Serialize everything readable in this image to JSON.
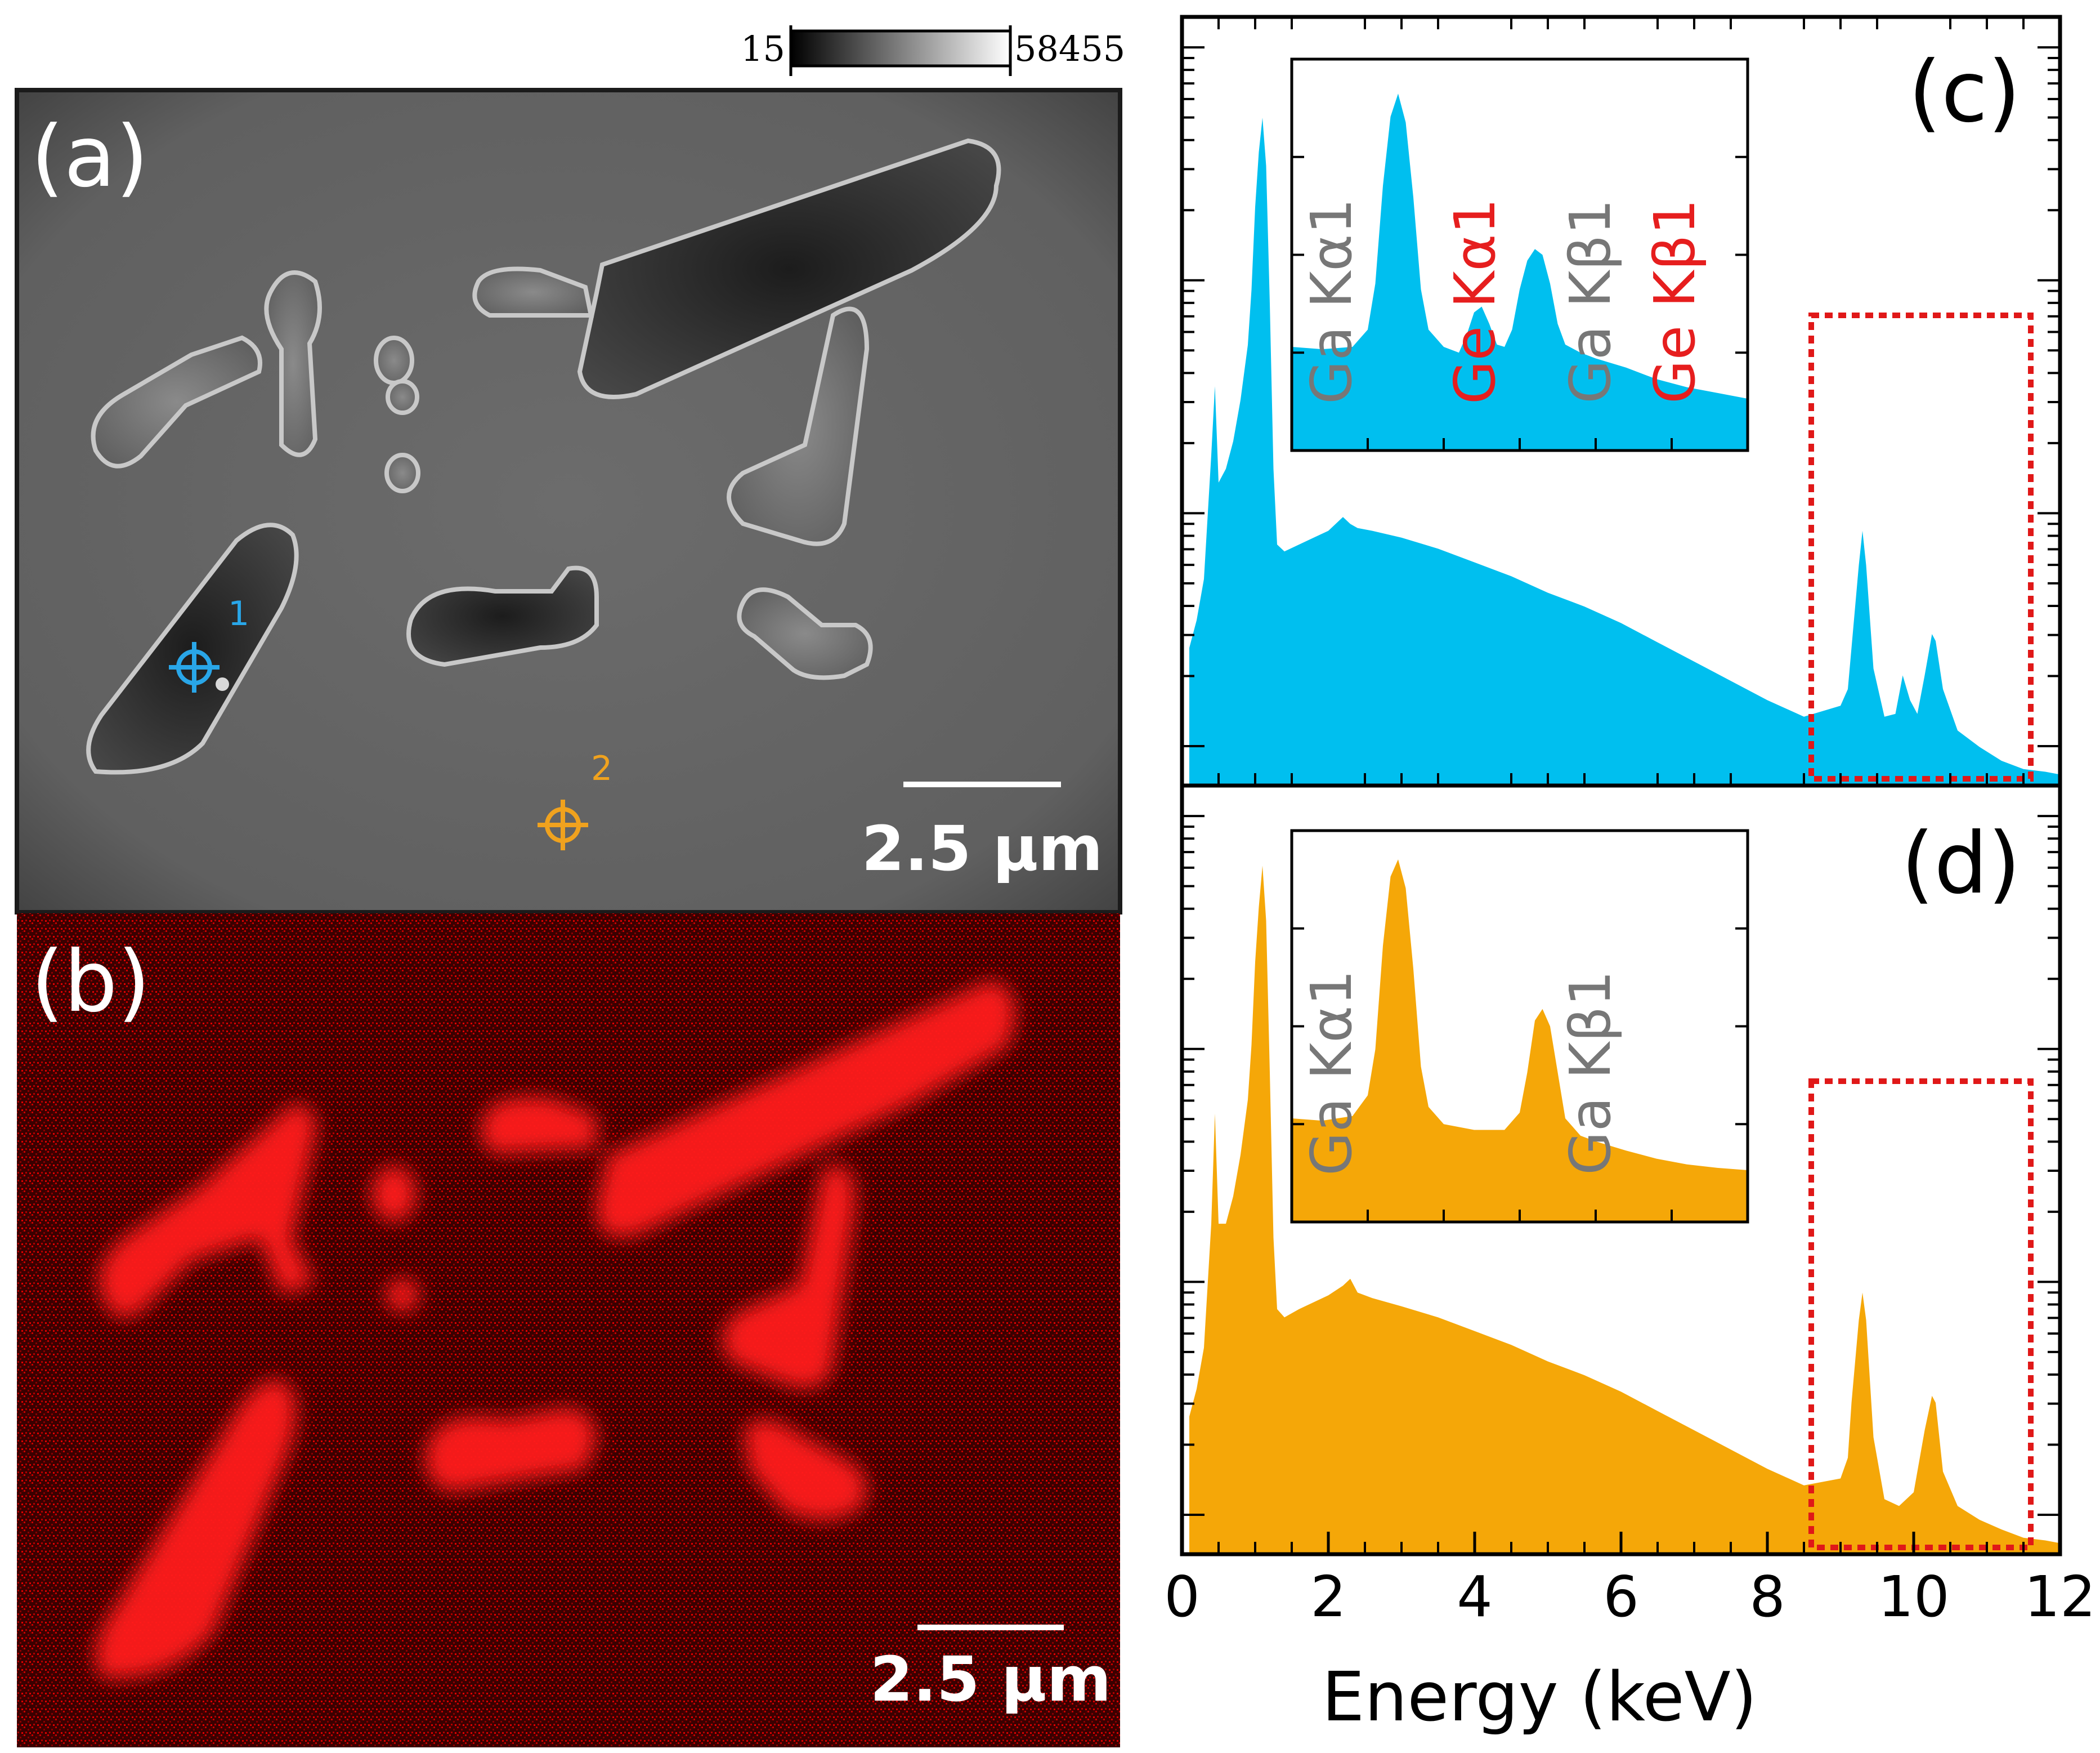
{
  "colorbar": {
    "min_label": "15",
    "max_label": "58455"
  },
  "panel_a": {
    "label": "(a)",
    "scalebar": "2.5 μm",
    "markers": [
      {
        "label": "1",
        "color": "#29a6e8"
      },
      {
        "label": "2",
        "color": "#f0a21e"
      }
    ]
  },
  "panel_b": {
    "label": "(b)",
    "scalebar": "2.5 μm"
  },
  "chart_data": [
    {
      "type": "area",
      "panel": "(c)",
      "color": "#00bfef",
      "xlabel": "Energy (keV)",
      "xlim": [
        0,
        12
      ],
      "yscale": "log",
      "xticks": [
        "0",
        "2",
        "4",
        "6",
        "8",
        "10",
        "12"
      ],
      "x": [
        0.1,
        0.2,
        0.3,
        0.4,
        0.45,
        0.5,
        0.6,
        0.7,
        0.8,
        0.9,
        0.95,
        1.0,
        1.05,
        1.1,
        1.15,
        1.2,
        1.25,
        1.3,
        1.4,
        1.6,
        1.8,
        2.0,
        2.2,
        2.3,
        2.4,
        2.6,
        3.0,
        3.5,
        4.0,
        4.5,
        5.0,
        5.5,
        6.0,
        6.5,
        7.0,
        7.5,
        8.0,
        8.5,
        9.0,
        9.1,
        9.15,
        9.25,
        9.3,
        9.35,
        9.45,
        9.6,
        9.75,
        9.85,
        9.95,
        10.05,
        10.15,
        10.25,
        10.3,
        10.4,
        10.6,
        10.9,
        11.2,
        11.5,
        11.8,
        12.0
      ],
      "y": [
        1.0,
        1.2,
        1.5,
        2.4,
        2.9,
        2.2,
        2.3,
        2.5,
        2.8,
        3.2,
        3.6,
        4.2,
        4.6,
        4.85,
        4.5,
        3.5,
        2.3,
        1.75,
        1.7,
        1.75,
        1.8,
        1.85,
        1.95,
        1.9,
        1.87,
        1.85,
        1.8,
        1.72,
        1.62,
        1.52,
        1.4,
        1.3,
        1.18,
        1.04,
        0.9,
        0.76,
        0.62,
        0.5,
        0.58,
        0.7,
        1.0,
        1.6,
        1.85,
        1.6,
        0.85,
        0.5,
        0.52,
        0.8,
        0.62,
        0.52,
        0.8,
        1.1,
        1.05,
        0.7,
        0.4,
        0.28,
        0.18,
        0.12,
        0.1,
        0.08
      ],
      "highlight_box_x": [
        8.6,
        11.6
      ],
      "inset": {
        "labels": [
          {
            "text": "Ga Kα1",
            "color": "#777777"
          },
          {
            "text": "Ge Kα1",
            "color": "#e61e1e"
          },
          {
            "text": "Ga Kβ1",
            "color": "#777777"
          },
          {
            "text": "Ge Kβ1",
            "color": "#e61e1e"
          }
        ],
        "x": [
          8.6,
          8.8,
          9.0,
          9.1,
          9.15,
          9.2,
          9.25,
          9.3,
          9.35,
          9.4,
          9.45,
          9.5,
          9.6,
          9.7,
          9.75,
          9.8,
          9.85,
          9.9,
          9.95,
          10.0,
          10.05,
          10.1,
          10.15,
          10.2,
          10.25,
          10.3,
          10.35,
          10.4,
          10.5,
          10.6,
          10.8,
          11.0,
          11.2,
          11.4,
          11.6
        ],
        "y": [
          0.9,
          0.88,
          0.9,
          1.05,
          1.45,
          2.3,
          2.9,
          3.1,
          2.85,
          2.2,
          1.4,
          1.05,
          0.9,
          0.85,
          1.0,
          1.2,
          1.25,
          1.1,
          0.92,
          0.9,
          1.05,
          1.4,
          1.65,
          1.75,
          1.7,
          1.45,
          1.1,
          0.92,
          0.85,
          0.8,
          0.72,
          0.62,
          0.55,
          0.5,
          0.45
        ]
      }
    },
    {
      "type": "area",
      "panel": "(d)",
      "color": "#f5a708",
      "xlabel": "Energy (keV)",
      "xlim": [
        0,
        12
      ],
      "yscale": "log",
      "xticks": [
        "0",
        "2",
        "4",
        "6",
        "8",
        "10",
        "12"
      ],
      "x": [
        0.1,
        0.2,
        0.3,
        0.4,
        0.45,
        0.5,
        0.6,
        0.7,
        0.8,
        0.9,
        0.95,
        1.0,
        1.05,
        1.1,
        1.15,
        1.2,
        1.25,
        1.3,
        1.4,
        1.6,
        1.8,
        2.0,
        2.2,
        2.3,
        2.4,
        2.6,
        3.0,
        3.5,
        4.0,
        4.5,
        5.0,
        5.5,
        6.0,
        6.5,
        7.0,
        7.5,
        8.0,
        8.5,
        9.0,
        9.1,
        9.15,
        9.25,
        9.3,
        9.35,
        9.45,
        9.6,
        9.8,
        10.0,
        10.15,
        10.25,
        10.3,
        10.4,
        10.6,
        10.9,
        11.2,
        11.5,
        11.8,
        12.0
      ],
      "y": [
        1.0,
        1.2,
        1.5,
        2.4,
        3.2,
        2.4,
        2.4,
        2.6,
        2.9,
        3.3,
        3.7,
        4.3,
        4.7,
        5.0,
        4.6,
        3.5,
        2.3,
        1.78,
        1.72,
        1.78,
        1.83,
        1.88,
        1.95,
        2.0,
        1.9,
        1.86,
        1.8,
        1.72,
        1.62,
        1.52,
        1.4,
        1.3,
        1.18,
        1.04,
        0.9,
        0.76,
        0.62,
        0.5,
        0.55,
        0.7,
        1.1,
        1.7,
        1.9,
        1.7,
        0.85,
        0.4,
        0.35,
        0.45,
        0.9,
        1.15,
        1.1,
        0.6,
        0.35,
        0.25,
        0.18,
        0.12,
        0.1,
        0.08
      ],
      "highlight_box_x": [
        8.6,
        11.6
      ],
      "inset": {
        "labels": [
          {
            "text": "Ga Kα1",
            "color": "#777777"
          },
          {
            "text": "Ga Kβ1",
            "color": "#777777"
          }
        ],
        "x": [
          8.6,
          8.8,
          9.0,
          9.1,
          9.15,
          9.2,
          9.25,
          9.3,
          9.35,
          9.4,
          9.45,
          9.5,
          9.6,
          9.8,
          10.0,
          10.1,
          10.15,
          10.2,
          10.25,
          10.3,
          10.35,
          10.4,
          10.5,
          10.6,
          10.8,
          11.0,
          11.2,
          11.4,
          11.6
        ],
        "y": [
          0.9,
          0.88,
          0.92,
          1.1,
          1.5,
          2.4,
          3.0,
          3.15,
          2.9,
          2.2,
          1.35,
          1.0,
          0.85,
          0.8,
          0.8,
          0.95,
          1.3,
          1.75,
          1.85,
          1.7,
          1.3,
          0.9,
          0.75,
          0.7,
          0.62,
          0.55,
          0.5,
          0.47,
          0.45
        ]
      }
    }
  ]
}
